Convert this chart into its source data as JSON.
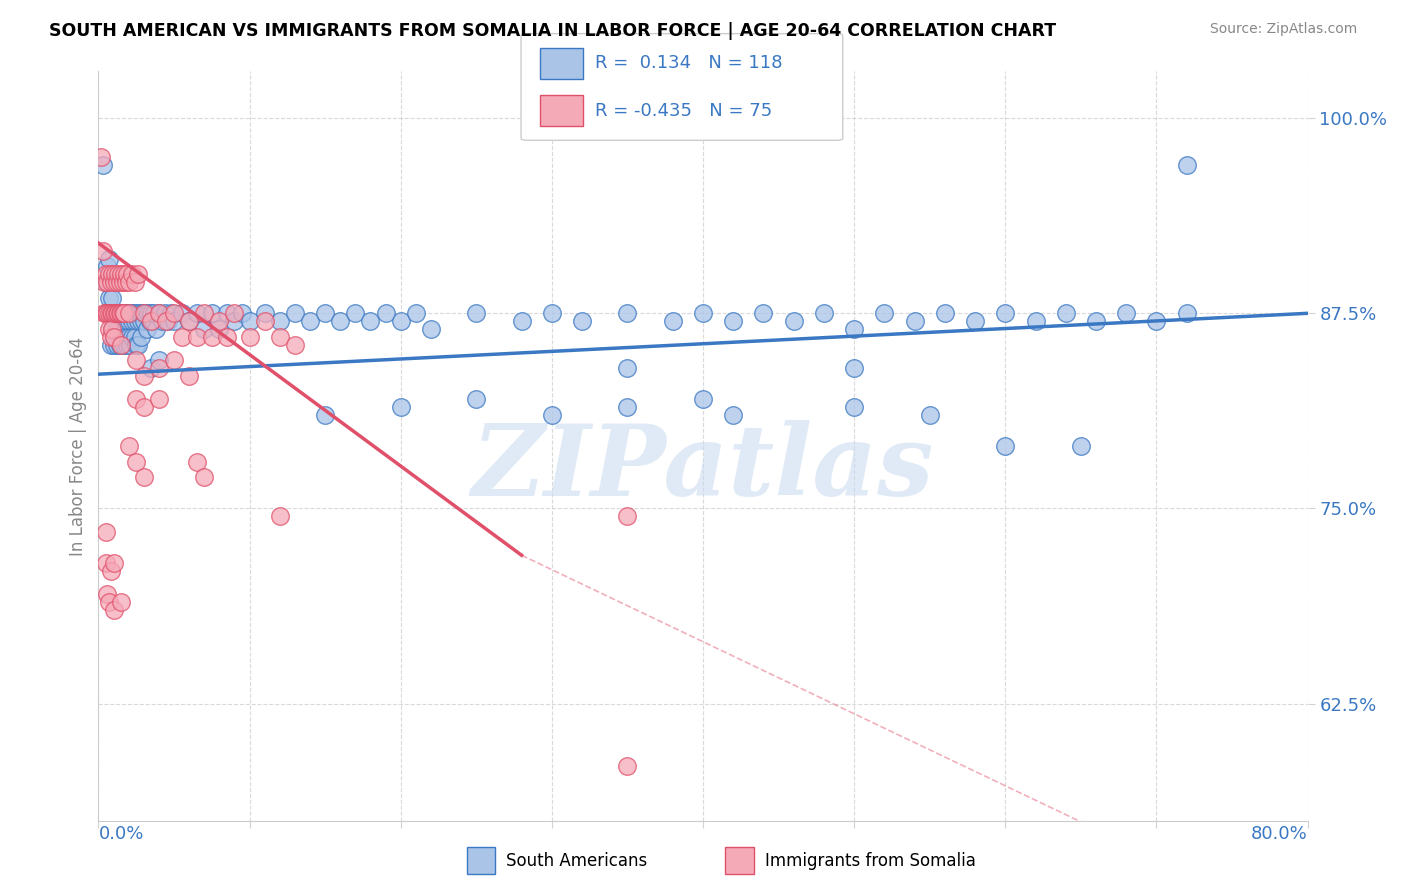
{
  "title": "SOUTH AMERICAN VS IMMIGRANTS FROM SOMALIA IN LABOR FORCE | AGE 20-64 CORRELATION CHART",
  "source": "Source: ZipAtlas.com",
  "ylabel": "In Labor Force | Age 20-64",
  "ytick_labels": [
    "62.5%",
    "75.0%",
    "87.5%",
    "100.0%"
  ],
  "ytick_values": [
    0.625,
    0.75,
    0.875,
    1.0
  ],
  "xlim": [
    0.0,
    0.8
  ],
  "ylim": [
    0.55,
    1.03
  ],
  "legend_blue_R": "0.134",
  "legend_blue_N": "118",
  "legend_pink_R": "-0.435",
  "legend_pink_N": "75",
  "blue_color": "#aac4e8",
  "pink_color": "#f5aab8",
  "blue_line_color": "#3b78c3",
  "pink_line_color": "#e0506a",
  "watermark": "ZIPatlas",
  "blue_line": [
    0.0,
    0.836,
    0.8,
    0.875
  ],
  "pink_line_solid": [
    0.0,
    0.92,
    0.28,
    0.72
  ],
  "pink_line_dash": [
    0.28,
    0.72,
    0.8,
    0.48
  ],
  "blue_scatter": [
    [
      0.003,
      0.97
    ],
    [
      0.005,
      0.895
    ],
    [
      0.006,
      0.905
    ],
    [
      0.007,
      0.91
    ],
    [
      0.007,
      0.885
    ],
    [
      0.008,
      0.875
    ],
    [
      0.008,
      0.855
    ],
    [
      0.009,
      0.885
    ],
    [
      0.009,
      0.865
    ],
    [
      0.01,
      0.875
    ],
    [
      0.01,
      0.86
    ],
    [
      0.01,
      0.855
    ],
    [
      0.011,
      0.875
    ],
    [
      0.012,
      0.865
    ],
    [
      0.012,
      0.855
    ],
    [
      0.013,
      0.875
    ],
    [
      0.013,
      0.865
    ],
    [
      0.014,
      0.875
    ],
    [
      0.014,
      0.855
    ],
    [
      0.015,
      0.875
    ],
    [
      0.015,
      0.865
    ],
    [
      0.016,
      0.875
    ],
    [
      0.016,
      0.86
    ],
    [
      0.017,
      0.875
    ],
    [
      0.017,
      0.855
    ],
    [
      0.018,
      0.87
    ],
    [
      0.018,
      0.86
    ],
    [
      0.019,
      0.875
    ],
    [
      0.019,
      0.855
    ],
    [
      0.02,
      0.87
    ],
    [
      0.02,
      0.86
    ],
    [
      0.021,
      0.875
    ],
    [
      0.021,
      0.855
    ],
    [
      0.022,
      0.87
    ],
    [
      0.022,
      0.86
    ],
    [
      0.023,
      0.875
    ],
    [
      0.024,
      0.87
    ],
    [
      0.024,
      0.86
    ],
    [
      0.025,
      0.875
    ],
    [
      0.025,
      0.855
    ],
    [
      0.026,
      0.87
    ],
    [
      0.026,
      0.855
    ],
    [
      0.027,
      0.875
    ],
    [
      0.028,
      0.87
    ],
    [
      0.028,
      0.86
    ],
    [
      0.029,
      0.875
    ],
    [
      0.03,
      0.87
    ],
    [
      0.031,
      0.875
    ],
    [
      0.032,
      0.865
    ],
    [
      0.033,
      0.875
    ],
    [
      0.034,
      0.87
    ],
    [
      0.035,
      0.875
    ],
    [
      0.036,
      0.87
    ],
    [
      0.037,
      0.875
    ],
    [
      0.038,
      0.865
    ],
    [
      0.04,
      0.875
    ],
    [
      0.042,
      0.87
    ],
    [
      0.044,
      0.875
    ],
    [
      0.046,
      0.87
    ],
    [
      0.048,
      0.875
    ],
    [
      0.05,
      0.87
    ],
    [
      0.055,
      0.875
    ],
    [
      0.06,
      0.87
    ],
    [
      0.065,
      0.875
    ],
    [
      0.07,
      0.865
    ],
    [
      0.075,
      0.875
    ],
    [
      0.08,
      0.865
    ],
    [
      0.085,
      0.875
    ],
    [
      0.09,
      0.87
    ],
    [
      0.095,
      0.875
    ],
    [
      0.1,
      0.87
    ],
    [
      0.11,
      0.875
    ],
    [
      0.12,
      0.87
    ],
    [
      0.13,
      0.875
    ],
    [
      0.14,
      0.87
    ],
    [
      0.15,
      0.875
    ],
    [
      0.16,
      0.87
    ],
    [
      0.17,
      0.875
    ],
    [
      0.18,
      0.87
    ],
    [
      0.19,
      0.875
    ],
    [
      0.2,
      0.87
    ],
    [
      0.21,
      0.875
    ],
    [
      0.22,
      0.865
    ],
    [
      0.25,
      0.875
    ],
    [
      0.28,
      0.87
    ],
    [
      0.3,
      0.875
    ],
    [
      0.32,
      0.87
    ],
    [
      0.35,
      0.875
    ],
    [
      0.38,
      0.87
    ],
    [
      0.4,
      0.875
    ],
    [
      0.42,
      0.87
    ],
    [
      0.44,
      0.875
    ],
    [
      0.46,
      0.87
    ],
    [
      0.48,
      0.875
    ],
    [
      0.5,
      0.865
    ],
    [
      0.52,
      0.875
    ],
    [
      0.54,
      0.87
    ],
    [
      0.56,
      0.875
    ],
    [
      0.58,
      0.87
    ],
    [
      0.6,
      0.875
    ],
    [
      0.62,
      0.87
    ],
    [
      0.64,
      0.875
    ],
    [
      0.66,
      0.87
    ],
    [
      0.68,
      0.875
    ],
    [
      0.7,
      0.87
    ],
    [
      0.72,
      0.875
    ],
    [
      0.15,
      0.81
    ],
    [
      0.2,
      0.815
    ],
    [
      0.25,
      0.82
    ],
    [
      0.3,
      0.81
    ],
    [
      0.35,
      0.815
    ],
    [
      0.4,
      0.82
    ],
    [
      0.42,
      0.81
    ],
    [
      0.5,
      0.815
    ],
    [
      0.35,
      0.84
    ],
    [
      0.5,
      0.84
    ],
    [
      0.6,
      0.79
    ],
    [
      0.65,
      0.79
    ],
    [
      0.55,
      0.81
    ],
    [
      0.035,
      0.84
    ],
    [
      0.04,
      0.845
    ],
    [
      0.72,
      0.97
    ]
  ],
  "pink_scatter": [
    [
      0.002,
      0.975
    ],
    [
      0.003,
      0.915
    ],
    [
      0.004,
      0.895
    ],
    [
      0.004,
      0.875
    ],
    [
      0.005,
      0.9
    ],
    [
      0.005,
      0.875
    ],
    [
      0.006,
      0.895
    ],
    [
      0.006,
      0.875
    ],
    [
      0.007,
      0.9
    ],
    [
      0.007,
      0.875
    ],
    [
      0.007,
      0.865
    ],
    [
      0.008,
      0.895
    ],
    [
      0.008,
      0.875
    ],
    [
      0.008,
      0.86
    ],
    [
      0.009,
      0.9
    ],
    [
      0.009,
      0.875
    ],
    [
      0.009,
      0.865
    ],
    [
      0.01,
      0.895
    ],
    [
      0.01,
      0.875
    ],
    [
      0.01,
      0.86
    ],
    [
      0.011,
      0.9
    ],
    [
      0.011,
      0.875
    ],
    [
      0.012,
      0.895
    ],
    [
      0.012,
      0.875
    ],
    [
      0.013,
      0.9
    ],
    [
      0.013,
      0.875
    ],
    [
      0.014,
      0.895
    ],
    [
      0.014,
      0.875
    ],
    [
      0.015,
      0.9
    ],
    [
      0.015,
      0.875
    ],
    [
      0.016,
      0.895
    ],
    [
      0.016,
      0.875
    ],
    [
      0.017,
      0.9
    ],
    [
      0.017,
      0.875
    ],
    [
      0.018,
      0.895
    ],
    [
      0.019,
      0.9
    ],
    [
      0.02,
      0.895
    ],
    [
      0.02,
      0.875
    ],
    [
      0.022,
      0.9
    ],
    [
      0.024,
      0.895
    ],
    [
      0.026,
      0.9
    ],
    [
      0.03,
      0.875
    ],
    [
      0.035,
      0.87
    ],
    [
      0.04,
      0.875
    ],
    [
      0.045,
      0.87
    ],
    [
      0.05,
      0.875
    ],
    [
      0.055,
      0.86
    ],
    [
      0.06,
      0.87
    ],
    [
      0.065,
      0.86
    ],
    [
      0.07,
      0.875
    ],
    [
      0.075,
      0.86
    ],
    [
      0.08,
      0.87
    ],
    [
      0.085,
      0.86
    ],
    [
      0.09,
      0.875
    ],
    [
      0.1,
      0.86
    ],
    [
      0.11,
      0.87
    ],
    [
      0.12,
      0.86
    ],
    [
      0.13,
      0.855
    ],
    [
      0.015,
      0.855
    ],
    [
      0.025,
      0.845
    ],
    [
      0.03,
      0.835
    ],
    [
      0.04,
      0.84
    ],
    [
      0.05,
      0.845
    ],
    [
      0.06,
      0.835
    ],
    [
      0.025,
      0.82
    ],
    [
      0.03,
      0.815
    ],
    [
      0.04,
      0.82
    ],
    [
      0.065,
      0.78
    ],
    [
      0.07,
      0.77
    ],
    [
      0.02,
      0.79
    ],
    [
      0.025,
      0.78
    ],
    [
      0.03,
      0.77
    ],
    [
      0.005,
      0.735
    ],
    [
      0.005,
      0.715
    ],
    [
      0.008,
      0.71
    ],
    [
      0.01,
      0.715
    ],
    [
      0.006,
      0.695
    ],
    [
      0.007,
      0.69
    ],
    [
      0.01,
      0.685
    ],
    [
      0.015,
      0.69
    ],
    [
      0.12,
      0.745
    ],
    [
      0.35,
      0.745
    ],
    [
      0.35,
      0.585
    ]
  ]
}
